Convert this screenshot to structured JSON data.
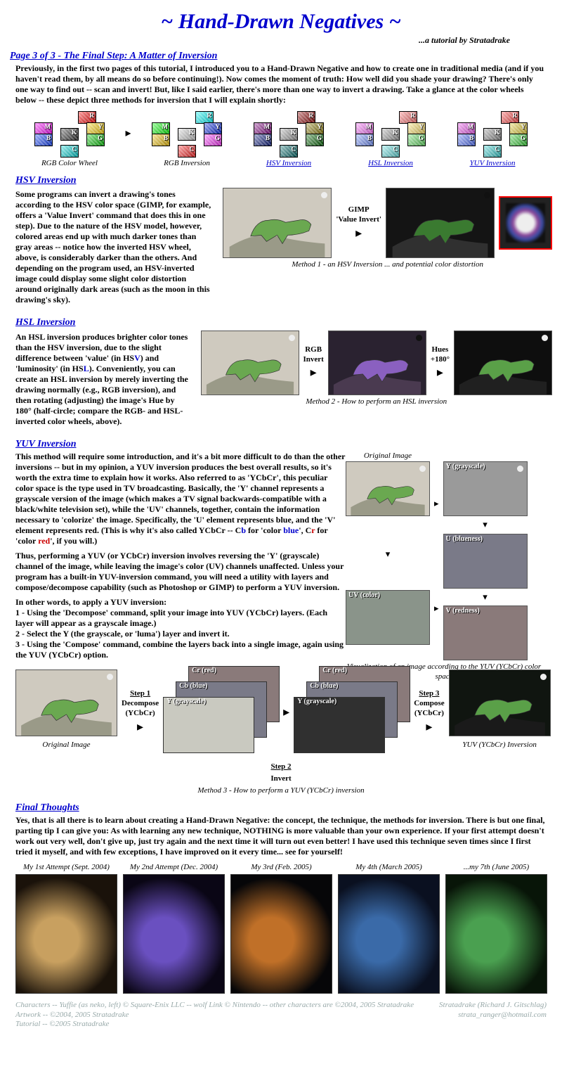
{
  "header": {
    "title": "~ Hand-Drawn Negatives ~",
    "subtitle": "...a tutorial by Stratadrake",
    "title_color": "#0000cd"
  },
  "page_link": "Page 3 of 3 - The Final Step:  A Matter of Inversion",
  "intro": "Previously, in the first two pages of this tutorial, I introduced you to a Hand-Drawn Negative and how to create one in traditional media (and if you haven't read them, by all means do so before continuing!).  Now comes the moment of truth:  How well did you shade your drawing?  There's only one way to find out -- scan and invert!  But, like I said earlier, there's more than one way to invert a drawing.  Take a glance at the color wheels below -- these depict three methods for inversion that I will explain shortly:",
  "wheels": {
    "labels": [
      "R",
      "Y",
      "G",
      "C",
      "B",
      "M",
      "K"
    ],
    "captions": [
      "RGB Color Wheel",
      "RGB Inversion",
      "HSV Inversion",
      "HSL Inversion",
      "YUV Inversion"
    ],
    "caption_links": [
      false,
      false,
      true,
      true,
      true
    ],
    "variants": [
      {
        "R": "#ff0000",
        "Y": "#ffd400",
        "G": "#00c800",
        "C": "#00d8d8",
        "B": "#1040ff",
        "M": "#ff00ff",
        "K": "#303030"
      },
      {
        "R": "#00ffff",
        "Y": "#0020e0",
        "G": "#ff30ff",
        "C": "#ff2020",
        "B": "#f0c000",
        "M": "#00ff00",
        "K": "#d0d0d0"
      },
      {
        "R": "#900000",
        "Y": "#8a7a00",
        "G": "#006400",
        "C": "#006a6a",
        "B": "#0a1a80",
        "M": "#800080",
        "K": "#a0a0a0"
      },
      {
        "R": "#ff6a6a",
        "Y": "#ffe060",
        "G": "#60e060",
        "C": "#60e0e0",
        "B": "#7090ff",
        "M": "#ff70ff",
        "K": "#a0a0a0"
      },
      {
        "R": "#ff4040",
        "Y": "#e8d030",
        "G": "#30d030",
        "C": "#30d0d0",
        "B": "#5070ff",
        "M": "#f050f0",
        "K": "#909090"
      }
    ]
  },
  "hsv": {
    "heading": "HSV Inversion",
    "text": "Some programs can invert a drawing's tones according to the HSV color space (GIMP, for example, offers a 'Value Invert' command that does this in one step).  Due to the nature of the HSV model, however, colored areas end up with much darker tones than gray areas -- notice how the inverted HSV wheel, above, is considerably darker than the others.  And depending on the program used, an HSV-inverted image could display some slight color distortion around originally dark areas (such as the moon in this drawing's sky).",
    "arrow_label": "GIMP\n'Value Invert'",
    "caption": "Method 1 - an HSV Inversion ... and potential color distortion",
    "img1_bg": "#cfcabf",
    "img2_bg": "#141414",
    "distort_border": "#ff0000"
  },
  "hsl": {
    "heading": "HSL Inversion",
    "text_parts": [
      "An HSL inversion produces brighter color tones than the HSV inversion, due to the slight difference between 'value' (in HS",
      "V",
      ") and 'luminosity' (in HS",
      "L",
      ").  Conveniently, you can create an HSL inversion by merely inverting the drawing normally (e.g., RGB inversion), and then rotating (adjusting) the image's Hue by 180° (half-circle; compare the RGB- and HSL- inverted color wheels, above)."
    ],
    "label1": "RGB\nInvert",
    "label2": "Hues\n+180°",
    "caption": "Method 2 - How to perform an HSL inversion",
    "img1_bg": "#cfcabf",
    "img2_bg": "#2a2230",
    "img3_bg": "#0e0e0e"
  },
  "yuv": {
    "heading": "YUV Inversion",
    "p1_parts": [
      "This method will require some introduction, and it's a bit more difficult to do than the other inversions -- but in my opinion, a YUV inversion produces the best overall results, so it's worth the extra time to explain how it works.  Also referred to as 'YCbCr', this peculiar color space is the type used in TV broadcasting.  Basically, the 'Y' channel represents a grayscale version of the image (which makes a TV signal backwards-compatible with a black/white television set), while the 'UV' channels, together, contain the information necessary to 'colorize' the image.  Specifically, the 'U' element represents blue, and the 'V' element represents red.  (This is why it's also called YCbCr -- C",
      "b",
      " for 'color ",
      "blue",
      "', C",
      "r",
      " for 'color ",
      "red",
      "', if you will.)"
    ],
    "p2": "Thus, performing a YUV (or YCbCr) inversion involves reversing the 'Y' (grayscale) channel of the image, while leaving the image's color (UV) channels unaffected.  Unless your program has a built-in YUV-inversion command, you will need a utility with layers and compose/decompose capability (such as Photoshop or GIMP) to perform a YUV inversion.",
    "p3_intro": "In other words, to apply a YUV inversion:",
    "steps": [
      "1 - Using the 'Decompose' command, split your image into YUV (YCbCr) layers.  (Each layer will appear as a grayscale image.)",
      "2 - Select the Y (the grayscale, or 'luma') layer and invert it.",
      "3 - Using the 'Compose' command, combine the layers back into a single image, again using the YUV (YCbCr) option."
    ],
    "right_caption": "Visualization of an image  according to the YUV (YCbCr) color space",
    "right_labels": {
      "orig": "Original Image",
      "y": "Y (grayscale)",
      "u": "U (blueness)",
      "v": "V (redness)",
      "uv": "UV (color)"
    },
    "diagram": {
      "orig": "Original Image",
      "step1": "Step 1",
      "step1_sub": "Decompose\n(YCbCr)",
      "step2": "Step 2",
      "step2_sub": "Invert",
      "step3": "Step 3",
      "step3_sub": "Compose\n(YCbCr)",
      "layers": [
        "Cr (red)",
        "Cb (blue)",
        "Y (grayscale)"
      ],
      "result": "YUV (YCbCr) Inversion",
      "caption": "Method 3 - How to perform a YUV (YCbCr) inversion"
    },
    "colors": {
      "orig": "#cfcabf",
      "y": "#9a9a9a",
      "u": "#7a7a88",
      "v": "#8a7a7a",
      "uv": "#8a948a",
      "dark": "#1a1a1a",
      "layer_y": "#c9c9c0",
      "layer_y_inv": "#303030",
      "result": "#101510"
    }
  },
  "final": {
    "heading": "Final Thoughts",
    "text": "Yes, that is all there is to learn about creating a Hand-Drawn Negative: the concept, the technique, the methods for inversion.  There is but one final, parting tip I can give you:  As with learning any new technique, NOTHING is more valuable than your own experience.  If your first attempt doesn't work out very well, don't give up, just try again and the next time it will turn out even better!  I have used this technique seven times since I first tried it myself, and with few exceptions, I have improved on it every time... see for yourself!"
  },
  "attempts": [
    {
      "cap": "My 1st Attempt (Sept. 2004)",
      "bg": "#1a120a",
      "fg": "#c8a060"
    },
    {
      "cap": "My 2nd Attempt (Dec. 2004)",
      "bg": "#0a0615",
      "fg": "#6a50c0"
    },
    {
      "cap": "My 3rd (Feb. 2005)",
      "bg": "#060608",
      "fg": "#c07028"
    },
    {
      "cap": "My 4th (March 2005)",
      "bg": "#0a1020",
      "fg": "#3a6aa8"
    },
    {
      "cap": "...my 7th (June 2005)",
      "bg": "#081508",
      "fg": "#4aa050"
    }
  ],
  "footer": {
    "left": "Characters -- Yuffie (as neko, left) © Square-Enix LLC -- wolf Link © Nintendo -- other characters are ©2004, 2005 Stratadrake\nArtwork -- ©2004, 2005 Stratadrake\nTutorial -- ©2005 Stratadrake",
    "right": "Stratadrake (Richard J. Gitschlag)\nstrata_ranger@hotmail.com"
  }
}
